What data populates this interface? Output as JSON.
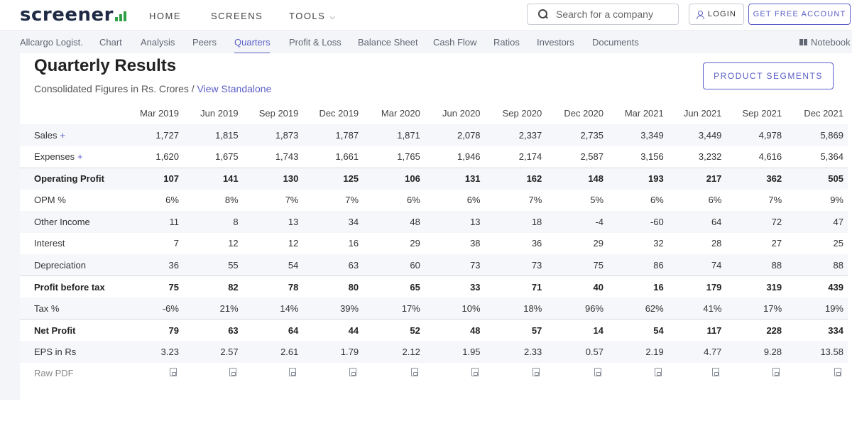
{
  "header": {
    "logo_text": "screener",
    "nav": {
      "home": "HOME",
      "screens": "SCREENS",
      "tools": "TOOLS"
    },
    "search": {
      "placeholder": "Search for a company"
    },
    "login_label": "LOGIN",
    "free_account_label": "GET FREE ACCOUNT"
  },
  "subnav": {
    "items": [
      "Allcargo Logist.",
      "Chart",
      "Analysis",
      "Peers",
      "Quarters",
      "Profit & Loss",
      "Balance Sheet",
      "Cash Flow",
      "Ratios",
      "Investors",
      "Documents"
    ],
    "active": "Quarters",
    "notebook": "Notebook"
  },
  "section": {
    "title": "Quarterly Results",
    "subtitle": "Consolidated Figures in Rs. Crores /",
    "standalone_link": "View Standalone",
    "segments_button": "PRODUCT SEGMENTS"
  },
  "table": {
    "columns": [
      "Mar 2019",
      "Jun 2019",
      "Sep 2019",
      "Dec 2019",
      "Mar 2020",
      "Jun 2020",
      "Sep 2020",
      "Dec 2020",
      "Mar 2021",
      "Jun 2021",
      "Sep 2021",
      "Dec 2021"
    ],
    "rows": [
      {
        "name": "Sales",
        "expandable": true,
        "values": [
          "1,727",
          "1,815",
          "1,873",
          "1,787",
          "1,871",
          "2,078",
          "2,337",
          "2,735",
          "3,349",
          "3,449",
          "4,978",
          "5,869"
        ]
      },
      {
        "name": "Expenses",
        "expandable": true,
        "values": [
          "1,620",
          "1,675",
          "1,743",
          "1,661",
          "1,765",
          "1,946",
          "2,174",
          "2,587",
          "3,156",
          "3,232",
          "4,616",
          "5,364"
        ]
      },
      {
        "name": "Operating Profit",
        "values": [
          "107",
          "141",
          "130",
          "125",
          "106",
          "131",
          "162",
          "148",
          "193",
          "217",
          "362",
          "505"
        ]
      },
      {
        "name": "OPM %",
        "values": [
          "6%",
          "8%",
          "7%",
          "7%",
          "6%",
          "6%",
          "7%",
          "5%",
          "6%",
          "6%",
          "7%",
          "9%"
        ]
      },
      {
        "name": "Other Income",
        "values": [
          "11",
          "8",
          "13",
          "34",
          "48",
          "13",
          "18",
          "-4",
          "-60",
          "64",
          "72",
          "47"
        ]
      },
      {
        "name": "Interest",
        "values": [
          "7",
          "12",
          "12",
          "16",
          "29",
          "38",
          "36",
          "29",
          "32",
          "28",
          "27",
          "25"
        ]
      },
      {
        "name": "Depreciation",
        "values": [
          "36",
          "55",
          "54",
          "63",
          "60",
          "73",
          "73",
          "75",
          "86",
          "74",
          "88",
          "88"
        ]
      },
      {
        "name": "Profit before tax",
        "values": [
          "75",
          "82",
          "78",
          "80",
          "65",
          "33",
          "71",
          "40",
          "16",
          "179",
          "319",
          "439"
        ]
      },
      {
        "name": "Tax %",
        "values": [
          "-6%",
          "21%",
          "14%",
          "39%",
          "17%",
          "10%",
          "18%",
          "96%",
          "62%",
          "41%",
          "17%",
          "19%"
        ]
      },
      {
        "name": "Net Profit",
        "values": [
          "79",
          "63",
          "64",
          "44",
          "52",
          "48",
          "57",
          "14",
          "54",
          "117",
          "228",
          "334"
        ]
      },
      {
        "name": "EPS in Rs",
        "values": [
          "3.23",
          "2.57",
          "2.61",
          "1.79",
          "2.12",
          "1.95",
          "2.33",
          "0.57",
          "2.19",
          "4.77",
          "9.28",
          "13.58"
        ]
      }
    ],
    "raw_pdf_label": "Raw PDF",
    "plus_symbol": "+"
  },
  "colors": {
    "accent": "#5b5fc7",
    "logo_bars": "#2ea043",
    "subnav_bg": "#f4f5f8"
  },
  "icons": [
    "search-icon",
    "chevron-down-icon",
    "user-icon",
    "book-icon",
    "pdf-icon"
  ]
}
